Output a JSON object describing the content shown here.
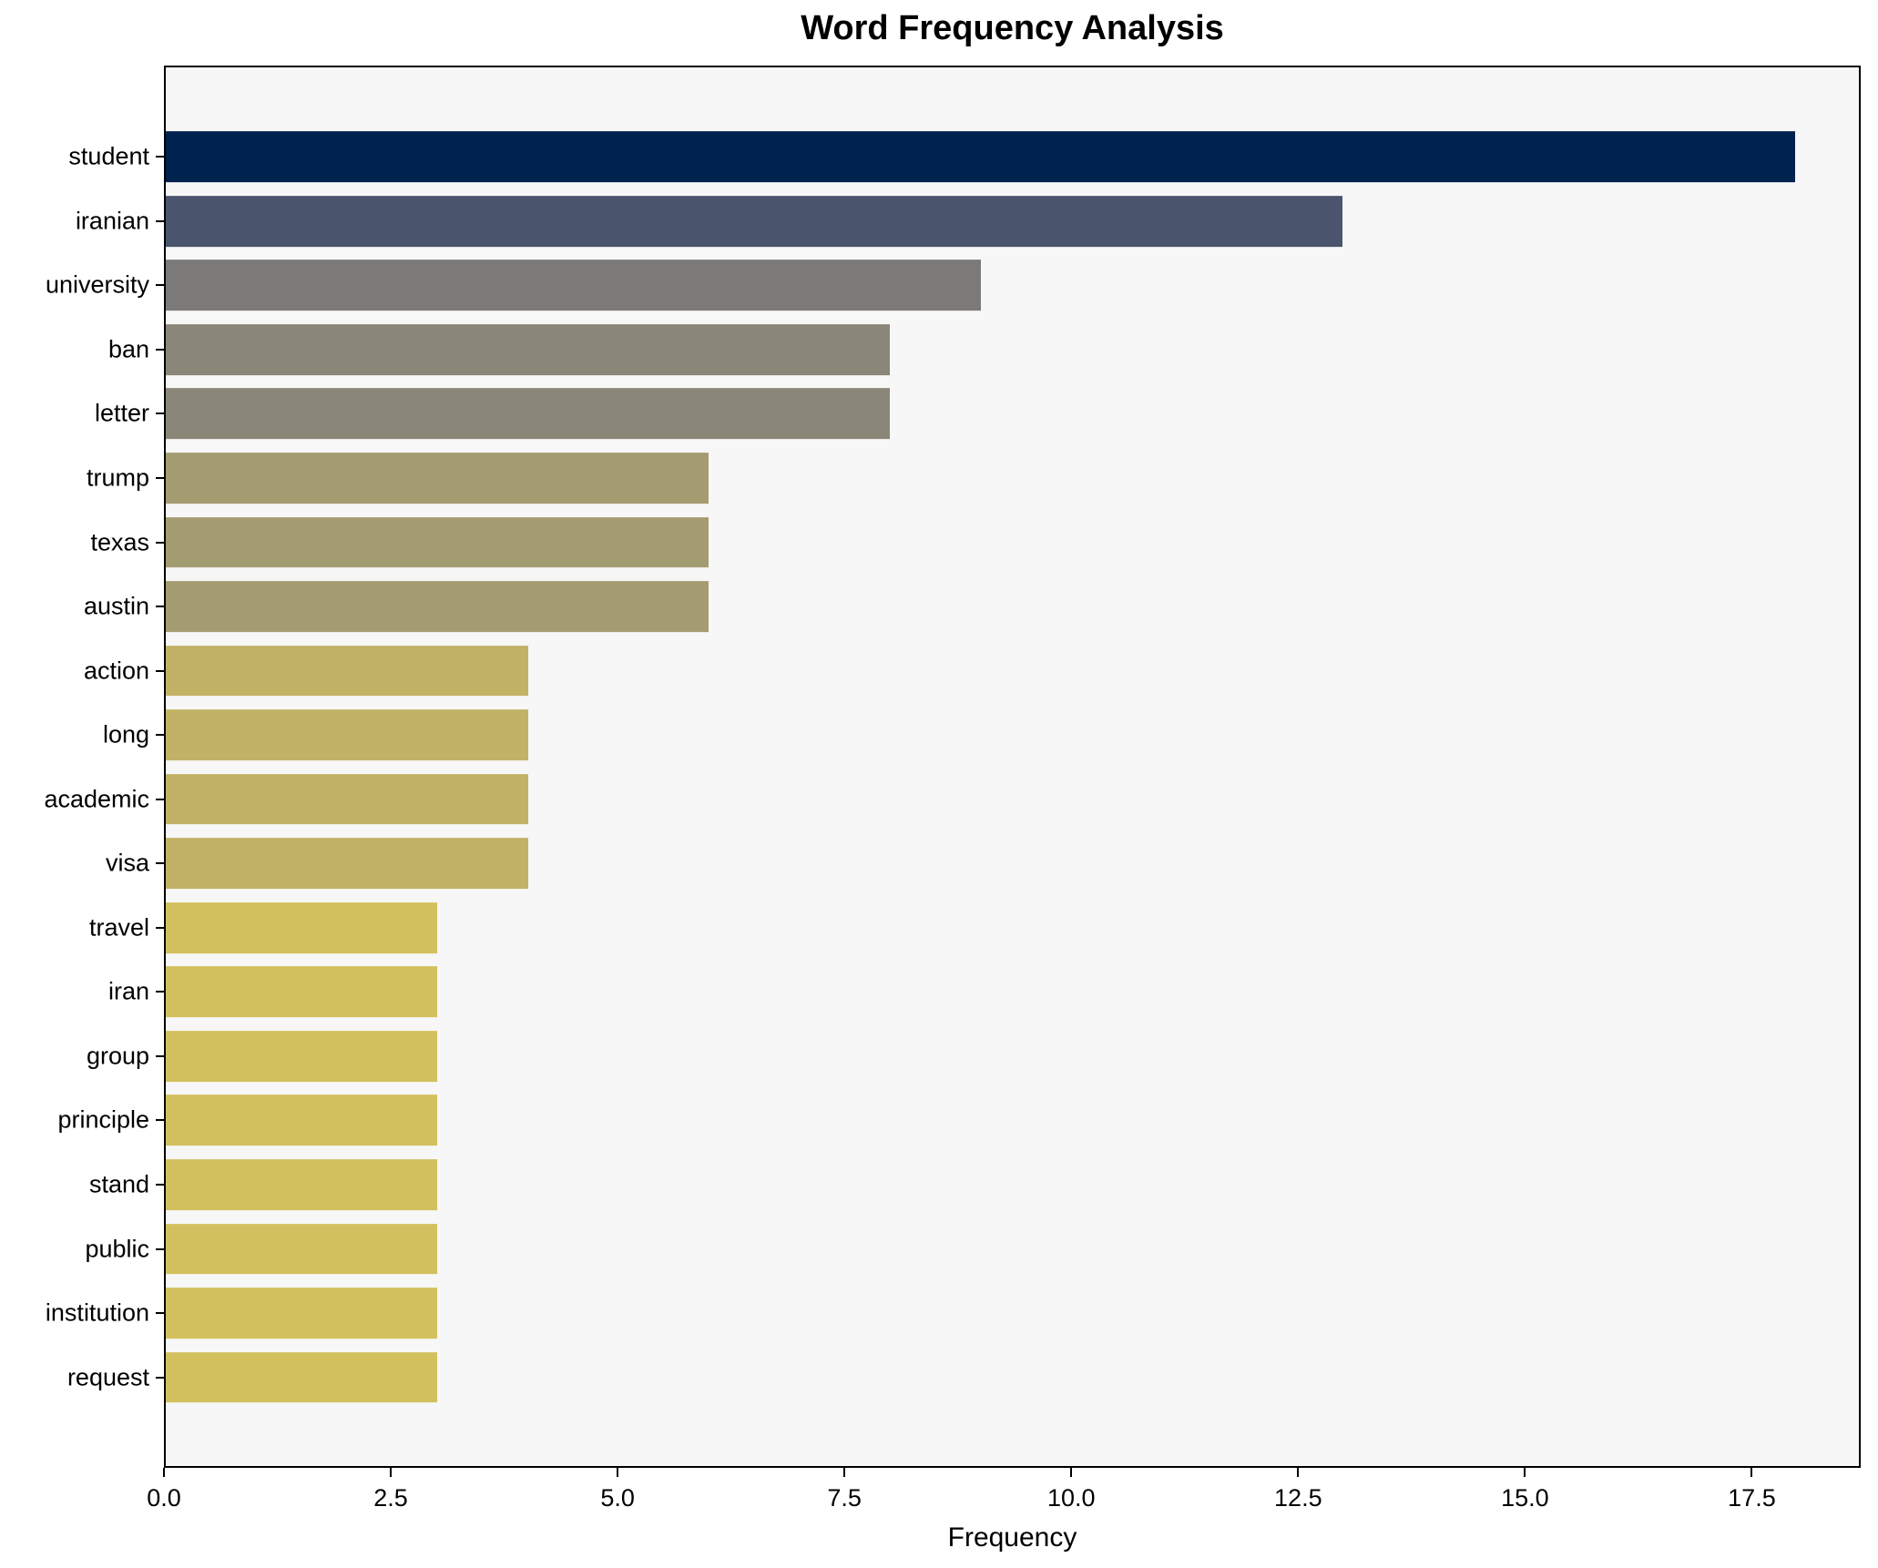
{
  "title": "Word Frequency Analysis",
  "chart_data": {
    "type": "bar",
    "orientation": "horizontal",
    "title": "Word Frequency Analysis",
    "xlabel": "Frequency",
    "ylabel": "",
    "categories": [
      "student",
      "iranian",
      "university",
      "ban",
      "letter",
      "trump",
      "texas",
      "austin",
      "action",
      "long",
      "academic",
      "visa",
      "travel",
      "iran",
      "group",
      "principle",
      "stand",
      "public",
      "institution",
      "request"
    ],
    "values": [
      18,
      13,
      9,
      8,
      8,
      6,
      6,
      6,
      4,
      4,
      4,
      4,
      3,
      3,
      3,
      3,
      3,
      3,
      3,
      3
    ],
    "bar_colors": [
      "#00224e",
      "#4a546c",
      "#7b7a78",
      "#8a8779",
      "#8a8779",
      "#a49c71",
      "#a49c71",
      "#a49c71",
      "#c2b266",
      "#c2b266",
      "#c2b266",
      "#c2b266",
      "#d2c05e",
      "#d2c05e",
      "#d2c05e",
      "#d2c05e",
      "#d2c05e",
      "#d2c05e",
      "#d2c05e",
      "#d2c05e"
    ],
    "xtick_values": [
      0,
      2.5,
      5,
      7.5,
      10,
      12.5,
      15,
      17.5
    ],
    "xtick_labels": [
      "0.0",
      "2.5",
      "5.0",
      "7.5",
      "10.0",
      "12.5",
      "15.0",
      "17.5"
    ],
    "xlim": [
      0,
      18.7
    ],
    "grid": false,
    "legend_position": "none",
    "plot_background": "#f7f7f7",
    "figure_background": "#ffffff",
    "axis_color": "#000000"
  }
}
